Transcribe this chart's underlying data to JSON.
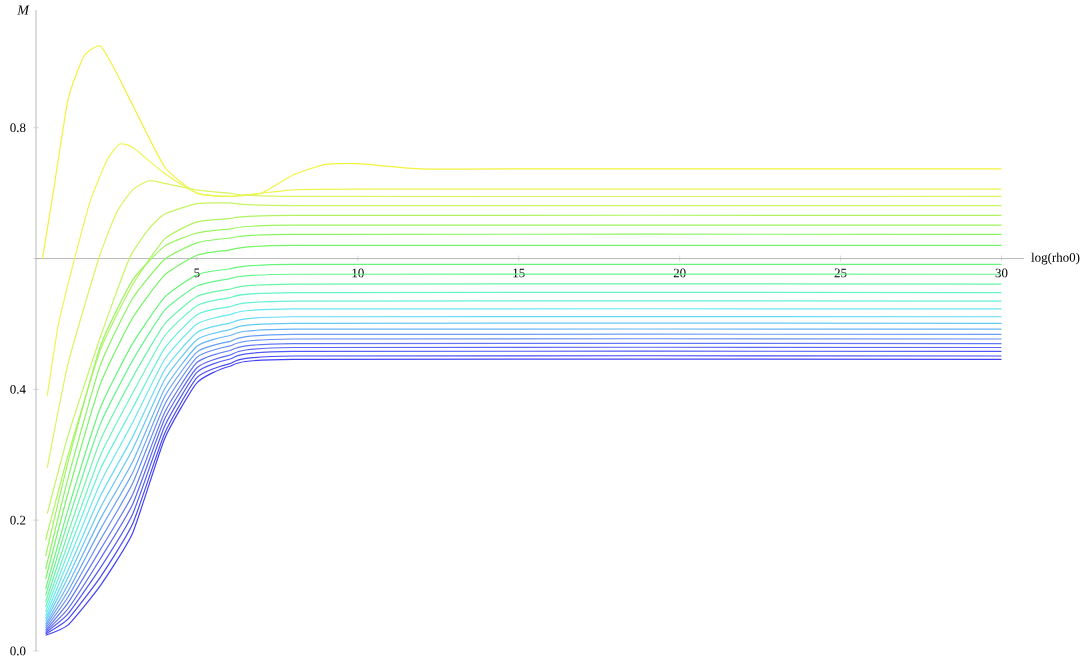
{
  "chart_data": {
    "type": "line",
    "xlabel": "log(rho0)",
    "ylabel": "M",
    "xlim": [
      0,
      30.7
    ],
    "ylim": [
      0,
      0.98
    ],
    "xticks": [
      5,
      10,
      15,
      20,
      25,
      30
    ],
    "yticks": [
      {
        "value": 0,
        "label": "0.0"
      },
      0.2,
      0.4,
      {
        "value": 0.6,
        "label": null
      },
      0.8
    ],
    "x": [
      0.3,
      1,
      2,
      3,
      4,
      5,
      6,
      8,
      30
    ],
    "series": [
      {
        "color": "#f2f23c",
        "x": [
          0.2,
          0.5,
          1,
          1.5,
          2,
          2.5,
          3,
          4,
          5,
          6,
          7,
          8,
          9,
          10,
          12,
          15,
          30
        ],
        "values": [
          0.6,
          0.69,
          0.844,
          0.91,
          0.925,
          0.884,
          0.835,
          0.74,
          0.7,
          0.695,
          0.7,
          0.728,
          0.744,
          0.745,
          0.737,
          0.737,
          0.737
        ]
      },
      {
        "color": "#eef550",
        "x": [
          0.35,
          0.7,
          1.2,
          1.7,
          2.2,
          2.6,
          3,
          4,
          5,
          6,
          8,
          10,
          30
        ],
        "values": [
          0.39,
          0.5,
          0.6,
          0.69,
          0.75,
          0.775,
          0.77,
          0.73,
          0.7,
          0.695,
          0.705,
          0.706,
          0.706
        ]
      },
      {
        "color": "#d8f560",
        "x": [
          0.35,
          1,
          1.95,
          2.5,
          3,
          3.5,
          4,
          5,
          6,
          8,
          30
        ],
        "values": [
          0.28,
          0.44,
          0.6,
          0.67,
          0.705,
          0.719,
          0.715,
          0.705,
          0.7,
          0.695,
          0.695
        ]
      },
      {
        "color": "#c4f560",
        "x": [
          0.35,
          1,
          2,
          2.9,
          3.5,
          4,
          5,
          6,
          8,
          30
        ],
        "values": [
          0.21,
          0.33,
          0.48,
          0.6,
          0.645,
          0.668,
          0.684,
          0.685,
          0.681,
          0.681
        ]
      },
      {
        "color": "#b0f560",
        "values": [
          0.17,
          0.3,
          0.46,
          0.56,
          0.63,
          0.656,
          0.661,
          0.666,
          0.666
        ]
      },
      {
        "color": "#9cf560",
        "values": [
          0.145,
          0.29,
          0.466,
          0.567,
          0.619,
          0.639,
          0.645,
          0.651,
          0.651
        ]
      },
      {
        "color": "#88f560",
        "values": [
          0.125,
          0.265,
          0.437,
          0.539,
          0.599,
          0.624,
          0.631,
          0.637,
          0.637
        ]
      },
      {
        "color": "#74f565",
        "values": [
          0.11,
          0.242,
          0.408,
          0.509,
          0.575,
          0.605,
          0.613,
          0.62,
          0.62
        ]
      },
      {
        "color": "#66f57a",
        "values": [
          0.095,
          0.217,
          0.372,
          0.47,
          0.541,
          0.575,
          0.584,
          0.591,
          0.591
        ]
      },
      {
        "color": "#66f590",
        "values": [
          0.085,
          0.199,
          0.347,
          0.444,
          0.521,
          0.558,
          0.569,
          0.576,
          0.576
        ]
      },
      {
        "color": "#66f5a8",
        "values": [
          0.075,
          0.181,
          0.322,
          0.418,
          0.5,
          0.542,
          0.553,
          0.561,
          0.561
        ]
      },
      {
        "color": "#66f5c0",
        "values": [
          0.067,
          0.165,
          0.299,
          0.394,
          0.482,
          0.528,
          0.54,
          0.548,
          0.548
        ]
      },
      {
        "color": "#66f0d8",
        "values": [
          0.06,
          0.151,
          0.278,
          0.371,
          0.463,
          0.514,
          0.526,
          0.535,
          0.535
        ]
      },
      {
        "color": "#66e8ee",
        "values": [
          0.054,
          0.137,
          0.257,
          0.349,
          0.446,
          0.5,
          0.514,
          0.523,
          0.523
        ]
      },
      {
        "color": "#66daf5",
        "values": [
          0.049,
          0.124,
          0.237,
          0.327,
          0.43,
          0.487,
          0.501,
          0.511,
          0.511
        ]
      },
      {
        "color": "#66c8f5",
        "values": [
          0.045,
          0.113,
          0.219,
          0.308,
          0.415,
          0.476,
          0.491,
          0.501,
          0.501
        ]
      },
      {
        "color": "#66b4f5",
        "values": [
          0.041,
          0.102,
          0.202,
          0.289,
          0.401,
          0.466,
          0.482,
          0.492,
          0.492
        ]
      },
      {
        "color": "#66a0f5",
        "values": [
          0.038,
          0.092,
          0.186,
          0.272,
          0.389,
          0.457,
          0.473,
          0.484,
          0.484
        ]
      },
      {
        "color": "#668cf5",
        "values": [
          0.035,
          0.083,
          0.17,
          0.256,
          0.377,
          0.449,
          0.466,
          0.477,
          0.477
        ]
      },
      {
        "color": "#6078f5",
        "values": [
          0.032,
          0.074,
          0.155,
          0.239,
          0.365,
          0.441,
          0.459,
          0.47,
          0.47
        ]
      },
      {
        "color": "#5a66f5",
        "values": [
          0.03,
          0.065,
          0.141,
          0.224,
          0.355,
          0.433,
          0.452,
          0.464,
          0.464
        ]
      },
      {
        "color": "#5058f5",
        "values": [
          0.028,
          0.057,
          0.127,
          0.209,
          0.344,
          0.426,
          0.446,
          0.458,
          0.458
        ]
      },
      {
        "color": "#4848f5",
        "values": [
          0.026,
          0.049,
          0.113,
          0.194,
          0.333,
          0.418,
          0.439,
          0.451,
          0.451
        ]
      },
      {
        "color": "#4040f5",
        "values": [
          0.024,
          0.04,
          0.1,
          0.18,
          0.325,
          0.41,
          0.435,
          0.446,
          0.446
        ]
      }
    ]
  }
}
